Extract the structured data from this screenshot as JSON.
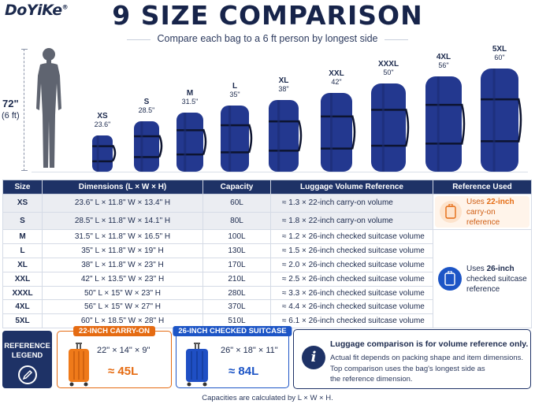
{
  "brand": {
    "name": "DoYiKe",
    "mark": "®"
  },
  "title": "9 SIZE COMPARISON",
  "subtitle": "Compare each bag to a 6 ft person by longest side",
  "person": {
    "height_label": "72\"",
    "height_sub": "(6 ft)",
    "icon": "person-silhouette-icon"
  },
  "colors": {
    "navy": "#1e3266",
    "bag": "#23388f",
    "orange": "#e56b12",
    "blue": "#1d55c6"
  },
  "bags": [
    {
      "size": "XS",
      "measure": "23.6\""
    },
    {
      "size": "S",
      "measure": "28.5\""
    },
    {
      "size": "M",
      "measure": "31.5\""
    },
    {
      "size": "L",
      "measure": "35\""
    },
    {
      "size": "XL",
      "measure": "38\""
    },
    {
      "size": "XXL",
      "measure": "42\""
    },
    {
      "size": "XXXL",
      "measure": "50\""
    },
    {
      "size": "4XL",
      "measure": "56\""
    },
    {
      "size": "5XL",
      "measure": "60\""
    }
  ],
  "table": {
    "headers": [
      "Size",
      "Dimensions (L × W × H)",
      "Capacity",
      "Luggage Volume Reference",
      "Reference Used"
    ],
    "rows": [
      {
        "size": "XS",
        "dims": "23.6\" L × 11.8\" W × 13.4\" H",
        "cap": "60L",
        "vol": "≈ 1.3 × 22-inch carry-on volume"
      },
      {
        "size": "S",
        "dims": "28.5\" L × 11.8\" W × 14.1\" H",
        "cap": "80L",
        "vol": "≈ 1.8 × 22-inch carry-on volume"
      },
      {
        "size": "M",
        "dims": "31.5\" L × 11.8\" W × 16.5\" H",
        "cap": "100L",
        "vol": "≈ 1.2 × 26-inch checked suitcase volume"
      },
      {
        "size": "L",
        "dims": "35\" L × 11.8\" W × 19\" H",
        "cap": "130L",
        "vol": "≈ 1.5 × 26-inch checked suitcase volume"
      },
      {
        "size": "XL",
        "dims": "38\" L × 11.8\" W × 23\" H",
        "cap": "170L",
        "vol": "≈ 2.0 × 26-inch checked suitcase volume"
      },
      {
        "size": "XXL",
        "dims": "42\" L × 13.5\" W × 23\" H",
        "cap": "210L",
        "vol": "≈ 2.5 × 26-inch checked suitcase volume"
      },
      {
        "size": "XXXL",
        "dims": "50\" L × 15\" W × 23\" H",
        "cap": "280L",
        "vol": "≈ 3.3 × 26-inch checked suitcase volume"
      },
      {
        "size": "4XL",
        "dims": "56\" L × 15\" W × 27\" H",
        "cap": "370L",
        "vol": "≈ 4.4 × 26-inch checked suitcase volume"
      },
      {
        "size": "5XL",
        "dims": "60\" L × 18.5\" W × 28\" H",
        "cap": "510L",
        "vol": "≈ 6.1 × 26-inch checked suitcase volume"
      }
    ],
    "ref_carry": {
      "pre": "Uses ",
      "bold": "22-inch",
      "post": "carry-on reference"
    },
    "ref_checked": {
      "pre": "Uses ",
      "bold": "26-inch",
      "post": "checked suitcase reference"
    }
  },
  "legend": {
    "line1": "REFERENCE",
    "line2": "LEGEND"
  },
  "carry_card": {
    "tag": "22-INCH CARRY-ON",
    "dims": "22\" × 14\" × 9\"",
    "volume": "≈ 45L"
  },
  "checked_card": {
    "tag": "26-INCH CHECKED SUITCASE",
    "dims": "26\" × 18\" × 11\"",
    "volume": "≈ 84L"
  },
  "info": {
    "title": "Luggage comparison is for volume reference only.",
    "lines": [
      "Actual fit depends on packing shape and item dimensions.",
      "Top comparison uses the bag's longest side as",
      "the reference dimension."
    ]
  },
  "footnote": "Capacities are calculated by L × W × H."
}
